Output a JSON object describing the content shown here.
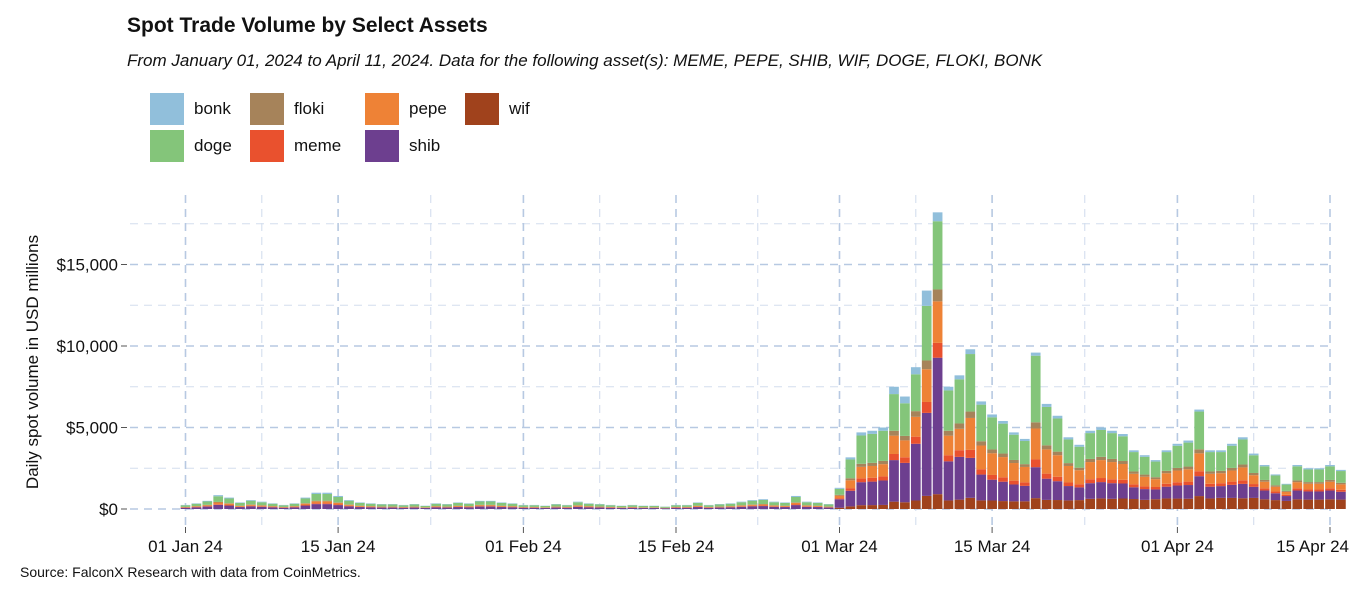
{
  "title": "Spot Trade Volume by Select Assets",
  "subtitle": "From January 01, 2024 to April 11, 2024. Data for the following asset(s): MEME, PEPE, SHIB, WIF, DOGE, FLOKI, BONK",
  "source": "Source: FalconX Research with data from CoinMetrics.",
  "legend": [
    {
      "key": "bonk",
      "label": "bonk",
      "color": "#91bfdb"
    },
    {
      "key": "floki",
      "label": "floki",
      "color": "#a6835a"
    },
    {
      "key": "pepe",
      "label": "pepe",
      "color": "#ee8236"
    },
    {
      "key": "wif",
      "label": "wif",
      "color": "#a0421c"
    },
    {
      "key": "doge",
      "label": "doge",
      "color": "#84c57a"
    },
    {
      "key": "meme",
      "label": "meme",
      "color": "#e9512e"
    },
    {
      "key": "shib",
      "label": "shib",
      "color": "#6d3f8f"
    }
  ],
  "chart_data": {
    "type": "bar",
    "stacked": true,
    "title": "Spot Trade Volume by Select Assets",
    "xlabel": "",
    "ylabel": "Daily spot volume in USD millions",
    "ylim": [
      0,
      18500
    ],
    "yticks": [
      0,
      5000,
      10000,
      15000
    ],
    "ytick_labels": [
      "$0",
      "$5,000",
      "$10,000",
      "$15,000"
    ],
    "xticks": [
      0,
      14,
      31,
      45,
      60,
      74,
      91,
      105
    ],
    "xtick_labels": [
      "01 Jan 24",
      "15 Jan 24",
      "01 Feb 24",
      "15 Feb 24",
      "01 Mar 24",
      "15 Mar 24",
      "01 Apr 24",
      "15 Apr 24"
    ],
    "x_start": "2024-01-01",
    "grid": true,
    "stack_order": [
      "wif",
      "shib",
      "meme",
      "pepe",
      "floki",
      "doge",
      "bonk"
    ],
    "totals": [
      250,
      350,
      500,
      850,
      700,
      400,
      550,
      450,
      350,
      250,
      350,
      700,
      1000,
      1000,
      800,
      550,
      400,
      350,
      300,
      300,
      250,
      300,
      200,
      350,
      300,
      400,
      350,
      500,
      500,
      400,
      350,
      250,
      250,
      200,
      300,
      250,
      450,
      350,
      300,
      250,
      200,
      250,
      200,
      200,
      150,
      250,
      250,
      400,
      250,
      300,
      350,
      450,
      550,
      600,
      450,
      400,
      800,
      450,
      400,
      300,
      1300,
      3200,
      4700,
      4800,
      5000,
      7500,
      6900,
      8700,
      13400,
      18200,
      7500,
      8200,
      9800,
      6600,
      5800,
      5400,
      4700,
      4300,
      9500,
      6200,
      5500,
      4400,
      3900,
      4800,
      5000,
      4800,
      4600,
      3600,
      3300,
      3000,
      3600,
      4000,
      4200,
      6100,
      3600,
      3600,
      4000,
      4400,
      3400,
      2700,
      2100,
      1500,
      2700,
      2500,
      2500,
      2700,
      2400
    ],
    "series": [
      {
        "name": "wif",
        "shares": [
          0,
          0,
          0,
          0,
          0,
          0,
          0,
          0,
          0,
          0,
          0,
          0,
          0,
          0,
          0,
          0,
          0,
          0,
          0,
          0,
          0,
          0,
          0,
          0,
          0,
          0,
          0,
          0,
          0,
          0,
          0,
          0,
          0,
          0,
          0,
          0,
          0,
          0,
          0,
          0,
          0,
          0,
          0,
          0,
          0,
          0,
          0,
          0,
          0,
          0,
          0,
          0,
          0,
          0,
          0,
          0,
          0,
          0,
          0,
          0,
          0.06,
          0.05,
          0.05,
          0.05,
          0.05,
          0.06,
          0.06,
          0.06,
          0.06,
          0.05,
          0.07,
          0.07,
          0.07,
          0.08,
          0.09,
          0.09,
          0.1,
          0.11,
          0.07,
          0.09,
          0.1,
          0.12,
          0.14,
          0.13,
          0.13,
          0.13,
          0.14,
          0.17,
          0.17,
          0.2,
          0.18,
          0.16,
          0.15,
          0.13,
          0.18,
          0.19,
          0.17,
          0.15,
          0.2,
          0.22,
          0.26,
          0.33,
          0.22,
          0.23,
          0.23,
          0.22,
          0.24
        ]
      },
      {
        "name": "shib",
        "shares": [
          0.3,
          0.3,
          0.3,
          0.3,
          0.3,
          0.3,
          0.3,
          0.3,
          0.3,
          0.3,
          0.3,
          0.3,
          0.3,
          0.3,
          0.3,
          0.3,
          0.3,
          0.3,
          0.3,
          0.3,
          0.3,
          0.3,
          0.3,
          0.3,
          0.3,
          0.3,
          0.3,
          0.3,
          0.3,
          0.3,
          0.3,
          0.3,
          0.3,
          0.3,
          0.3,
          0.3,
          0.3,
          0.3,
          0.3,
          0.3,
          0.3,
          0.3,
          0.3,
          0.3,
          0.3,
          0.3,
          0.3,
          0.3,
          0.3,
          0.3,
          0.3,
          0.3,
          0.3,
          0.3,
          0.3,
          0.3,
          0.3,
          0.3,
          0.3,
          0.3,
          0.4,
          0.3,
          0.3,
          0.3,
          0.3,
          0.34,
          0.35,
          0.4,
          0.38,
          0.46,
          0.32,
          0.32,
          0.25,
          0.24,
          0.22,
          0.22,
          0.22,
          0.22,
          0.2,
          0.21,
          0.21,
          0.2,
          0.2,
          0.2,
          0.2,
          0.2,
          0.2,
          0.2,
          0.2,
          0.2,
          0.2,
          0.2,
          0.2,
          0.2,
          0.2,
          0.2,
          0.2,
          0.2,
          0.2,
          0.2,
          0.2,
          0.2,
          0.2,
          0.2,
          0.2,
          0.2,
          0.2
        ]
      },
      {
        "name": "meme",
        "shares": [
          0.05,
          0.05,
          0.05,
          0.05,
          0.05,
          0.05,
          0.05,
          0.05,
          0.05,
          0.05,
          0.05,
          0.05,
          0.05,
          0.05,
          0.05,
          0.05,
          0.05,
          0.05,
          0.05,
          0.05,
          0.05,
          0.05,
          0.05,
          0.05,
          0.05,
          0.05,
          0.05,
          0.05,
          0.05,
          0.05,
          0.05,
          0.05,
          0.05,
          0.05,
          0.05,
          0.05,
          0.05,
          0.05,
          0.05,
          0.05,
          0.05,
          0.05,
          0.05,
          0.05,
          0.05,
          0.05,
          0.05,
          0.05,
          0.05,
          0.05,
          0.05,
          0.05,
          0.05,
          0.05,
          0.05,
          0.05,
          0.05,
          0.05,
          0.05,
          0.05,
          0.05,
          0.05,
          0.05,
          0.05,
          0.05,
          0.05,
          0.05,
          0.05,
          0.05,
          0.05,
          0.05,
          0.05,
          0.05,
          0.05,
          0.05,
          0.05,
          0.05,
          0.05,
          0.05,
          0.05,
          0.05,
          0.05,
          0.05,
          0.05,
          0.05,
          0.05,
          0.05,
          0.05,
          0.05,
          0.05,
          0.05,
          0.05,
          0.05,
          0.05,
          0.05,
          0.05,
          0.05,
          0.05,
          0.05,
          0.05,
          0.05,
          0.05,
          0.05,
          0.05,
          0.05,
          0.05,
          0.05
        ]
      },
      {
        "name": "pepe",
        "shares": [
          0.12,
          0.12,
          0.12,
          0.12,
          0.12,
          0.12,
          0.12,
          0.12,
          0.12,
          0.12,
          0.12,
          0.12,
          0.12,
          0.12,
          0.12,
          0.12,
          0.12,
          0.12,
          0.12,
          0.12,
          0.12,
          0.12,
          0.12,
          0.12,
          0.12,
          0.12,
          0.12,
          0.12,
          0.12,
          0.12,
          0.12,
          0.12,
          0.12,
          0.12,
          0.12,
          0.12,
          0.12,
          0.12,
          0.12,
          0.12,
          0.12,
          0.12,
          0.12,
          0.12,
          0.12,
          0.12,
          0.12,
          0.12,
          0.12,
          0.12,
          0.12,
          0.12,
          0.12,
          0.12,
          0.12,
          0.12,
          0.12,
          0.12,
          0.12,
          0.12,
          0.12,
          0.15,
          0.15,
          0.15,
          0.15,
          0.15,
          0.15,
          0.14,
          0.15,
          0.14,
          0.16,
          0.16,
          0.2,
          0.22,
          0.23,
          0.23,
          0.23,
          0.22,
          0.2,
          0.24,
          0.24,
          0.23,
          0.22,
          0.22,
          0.22,
          0.22,
          0.21,
          0.18,
          0.18,
          0.16,
          0.18,
          0.18,
          0.18,
          0.18,
          0.17,
          0.17,
          0.17,
          0.18,
          0.16,
          0.15,
          0.14,
          0.12,
          0.14,
          0.14,
          0.14,
          0.15,
          0.14
        ]
      },
      {
        "name": "floki",
        "shares": [
          0.04,
          0.04,
          0.04,
          0.04,
          0.04,
          0.04,
          0.04,
          0.04,
          0.04,
          0.04,
          0.04,
          0.04,
          0.04,
          0.04,
          0.04,
          0.04,
          0.04,
          0.04,
          0.04,
          0.04,
          0.04,
          0.04,
          0.04,
          0.04,
          0.04,
          0.04,
          0.04,
          0.04,
          0.04,
          0.04,
          0.04,
          0.04,
          0.04,
          0.04,
          0.04,
          0.04,
          0.04,
          0.04,
          0.04,
          0.04,
          0.04,
          0.04,
          0.04,
          0.04,
          0.04,
          0.04,
          0.04,
          0.04,
          0.04,
          0.04,
          0.04,
          0.04,
          0.04,
          0.04,
          0.04,
          0.04,
          0.04,
          0.04,
          0.04,
          0.04,
          0.04,
          0.04,
          0.04,
          0.04,
          0.04,
          0.04,
          0.04,
          0.04,
          0.04,
          0.04,
          0.04,
          0.04,
          0.04,
          0.04,
          0.04,
          0.04,
          0.04,
          0.04,
          0.04,
          0.04,
          0.04,
          0.04,
          0.04,
          0.04,
          0.04,
          0.04,
          0.04,
          0.04,
          0.04,
          0.04,
          0.04,
          0.04,
          0.04,
          0.04,
          0.04,
          0.04,
          0.04,
          0.04,
          0.04,
          0.04,
          0.04,
          0.04,
          0.04,
          0.04,
          0.04,
          0.04,
          0.04
        ]
      },
      {
        "name": "doge",
        "shares": [
          0.41,
          0.41,
          0.41,
          0.41,
          0.41,
          0.41,
          0.41,
          0.41,
          0.41,
          0.41,
          0.41,
          0.41,
          0.41,
          0.41,
          0.41,
          0.41,
          0.41,
          0.41,
          0.41,
          0.41,
          0.41,
          0.41,
          0.41,
          0.41,
          0.41,
          0.41,
          0.41,
          0.41,
          0.41,
          0.41,
          0.41,
          0.41,
          0.41,
          0.41,
          0.41,
          0.41,
          0.41,
          0.41,
          0.41,
          0.41,
          0.41,
          0.41,
          0.41,
          0.41,
          0.41,
          0.41,
          0.41,
          0.41,
          0.41,
          0.41,
          0.41,
          0.41,
          0.41,
          0.41,
          0.41,
          0.41,
          0.41,
          0.41,
          0.41,
          0.41,
          0.28,
          0.36,
          0.37,
          0.37,
          0.37,
          0.3,
          0.29,
          0.26,
          0.25,
          0.23,
          0.33,
          0.33,
          0.36,
          0.34,
          0.34,
          0.34,
          0.33,
          0.33,
          0.43,
          0.38,
          0.37,
          0.33,
          0.33,
          0.33,
          0.33,
          0.33,
          0.33,
          0.33,
          0.33,
          0.32,
          0.32,
          0.34,
          0.35,
          0.38,
          0.33,
          0.32,
          0.34,
          0.35,
          0.32,
          0.31,
          0.29,
          0.26,
          0.32,
          0.31,
          0.31,
          0.31,
          0.3
        ]
      },
      {
        "name": "bonk",
        "shares": [
          0.08,
          0.08,
          0.08,
          0.08,
          0.08,
          0.08,
          0.08,
          0.08,
          0.08,
          0.08,
          0.08,
          0.08,
          0.08,
          0.08,
          0.08,
          0.08,
          0.08,
          0.08,
          0.08,
          0.08,
          0.08,
          0.08,
          0.08,
          0.08,
          0.08,
          0.08,
          0.08,
          0.08,
          0.08,
          0.08,
          0.08,
          0.08,
          0.08,
          0.08,
          0.08,
          0.08,
          0.08,
          0.08,
          0.08,
          0.08,
          0.08,
          0.08,
          0.08,
          0.08,
          0.08,
          0.08,
          0.08,
          0.08,
          0.08,
          0.08,
          0.08,
          0.08,
          0.08,
          0.08,
          0.08,
          0.08,
          0.08,
          0.08,
          0.08,
          0.08,
          0.05,
          0.04,
          0.04,
          0.04,
          0.04,
          0.06,
          0.06,
          0.05,
          0.07,
          0.03,
          0.03,
          0.03,
          0.03,
          0.03,
          0.03,
          0.03,
          0.03,
          0.03,
          0.02,
          0.03,
          0.03,
          0.03,
          0.03,
          0.03,
          0.03,
          0.03,
          0.03,
          0.03,
          0.03,
          0.03,
          0.03,
          0.03,
          0.03,
          0.02,
          0.03,
          0.03,
          0.03,
          0.03,
          0.03,
          0.03,
          0.03,
          0.03,
          0.03,
          0.03,
          0.03,
          0.03,
          0.03
        ]
      }
    ]
  }
}
